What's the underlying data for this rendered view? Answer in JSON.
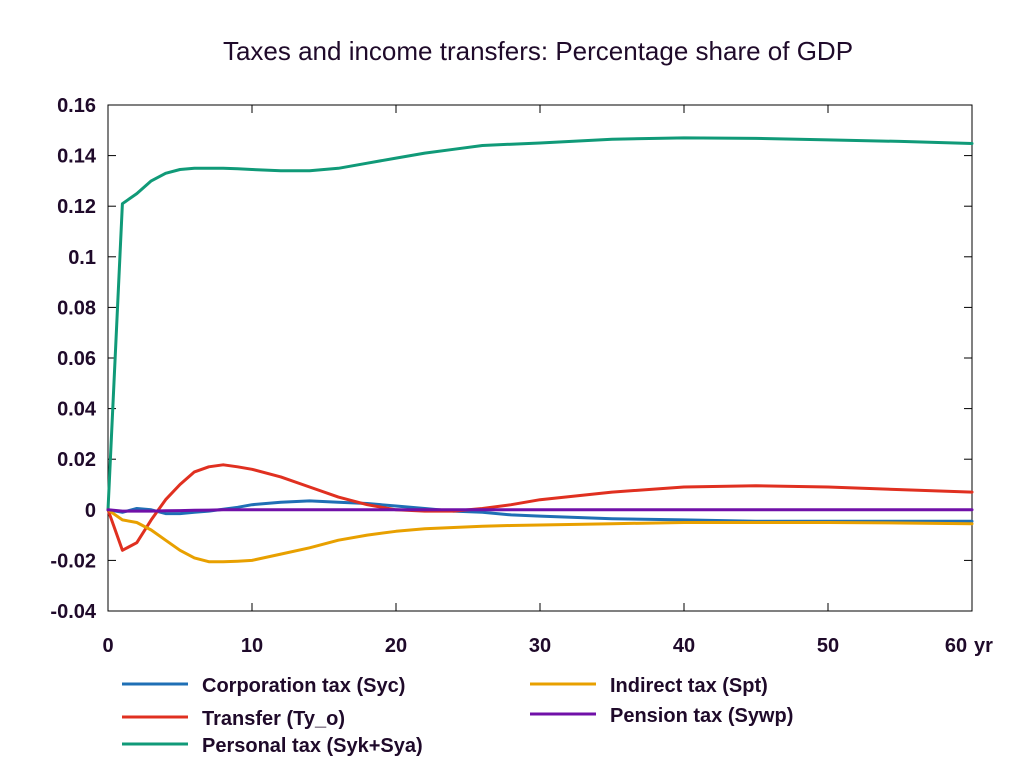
{
  "chart_data": {
    "type": "line",
    "title": "Taxes and income transfers: Percentage share of GDP",
    "xlabel": "",
    "ylabel": "",
    "x_unit_label": "yr",
    "xlim": [
      0,
      60
    ],
    "ylim": [
      -0.04,
      0.16
    ],
    "x_ticks": [
      "0",
      "10",
      "20",
      "30",
      "40",
      "50",
      "60"
    ],
    "y_ticks": [
      "-0.04",
      "-0.02",
      "0",
      "0.02",
      "0.04",
      "0.06",
      "0.08",
      "0.1",
      "0.12",
      "0.14",
      "0.16"
    ],
    "grid": false,
    "legend_position": "bottom",
    "x": [
      0,
      1,
      2,
      3,
      4,
      5,
      6,
      7,
      8,
      9,
      10,
      12,
      14,
      16,
      18,
      20,
      22,
      24,
      26,
      28,
      30,
      35,
      40,
      45,
      50,
      55,
      60
    ],
    "series": [
      {
        "name": "Corporation tax (Syc)",
        "color": "#1f6fb5",
        "values": [
          0,
          -0.001,
          0.0005,
          0,
          -0.0015,
          -0.0015,
          -0.001,
          -0.0005,
          0.0002,
          0.001,
          0.002,
          0.003,
          0.0035,
          0.003,
          0.0025,
          0.0015,
          0.0005,
          -0.0005,
          -0.001,
          -0.002,
          -0.0025,
          -0.0035,
          -0.004,
          -0.0045,
          -0.0045,
          -0.0045,
          -0.0045
        ]
      },
      {
        "name": "Transfer (Ty_o)",
        "color": "#e03020",
        "values": [
          0,
          -0.016,
          -0.013,
          -0.004,
          0.004,
          0.01,
          0.015,
          0.017,
          0.0178,
          0.017,
          0.016,
          0.013,
          0.009,
          0.005,
          0.002,
          0.0,
          -0.0005,
          -0.0005,
          0.0005,
          0.002,
          0.004,
          0.007,
          0.009,
          0.0095,
          0.009,
          0.008,
          0.007
        ]
      },
      {
        "name": "Personal tax (Syk+Sya)",
        "color": "#109a78",
        "values": [
          0,
          0.121,
          0.125,
          0.13,
          0.133,
          0.1345,
          0.135,
          0.135,
          0.135,
          0.1348,
          0.1345,
          0.134,
          0.134,
          0.135,
          0.137,
          0.139,
          0.141,
          0.1425,
          0.144,
          0.1445,
          0.145,
          0.1465,
          0.147,
          0.1468,
          0.1462,
          0.1456,
          0.1448
        ]
      },
      {
        "name": "Indirect tax (Spt)",
        "color": "#e8a000",
        "values": [
          0,
          -0.004,
          -0.005,
          -0.008,
          -0.012,
          -0.016,
          -0.019,
          -0.0205,
          -0.0205,
          -0.0203,
          -0.02,
          -0.0175,
          -0.015,
          -0.012,
          -0.01,
          -0.0085,
          -0.0075,
          -0.007,
          -0.0065,
          -0.0062,
          -0.006,
          -0.0055,
          -0.005,
          -0.005,
          -0.005,
          -0.0052,
          -0.0055
        ]
      },
      {
        "name": "Pension tax (Sywp)",
        "color": "#7010a8",
        "values": [
          0,
          -0.0005,
          -0.0005,
          -0.0005,
          -0.0004,
          -0.0003,
          -0.0002,
          -0.0001,
          0,
          0,
          0,
          0,
          0,
          0,
          0,
          0,
          0,
          0,
          0,
          0,
          0,
          0,
          0,
          0,
          0,
          0,
          0
        ]
      }
    ],
    "legend_order": [
      0,
      3,
      1,
      4,
      2
    ]
  }
}
